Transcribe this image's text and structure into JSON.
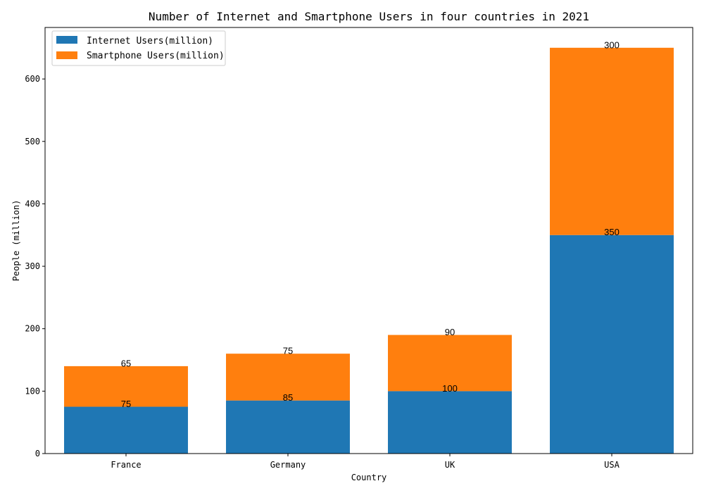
{
  "chart_data": {
    "type": "bar",
    "stacked": true,
    "title": "Number of Internet and Smartphone Users in four countries in 2021",
    "xlabel": "Country",
    "ylabel": "People (million)",
    "categories": [
      "France",
      "Germany",
      "UK",
      "USA"
    ],
    "series": [
      {
        "name": "Internet Users(million)",
        "values": [
          75,
          85,
          100,
          350
        ],
        "color": "#1f77b4"
      },
      {
        "name": "Smartphone Users(million)",
        "values": [
          65,
          75,
          90,
          300
        ],
        "color": "#ff7f0e"
      }
    ],
    "ylim": [
      0,
      682.5
    ],
    "yticks": [
      0,
      100,
      200,
      300,
      400,
      500,
      600
    ],
    "legend_position": "top-left",
    "grid": false
  }
}
